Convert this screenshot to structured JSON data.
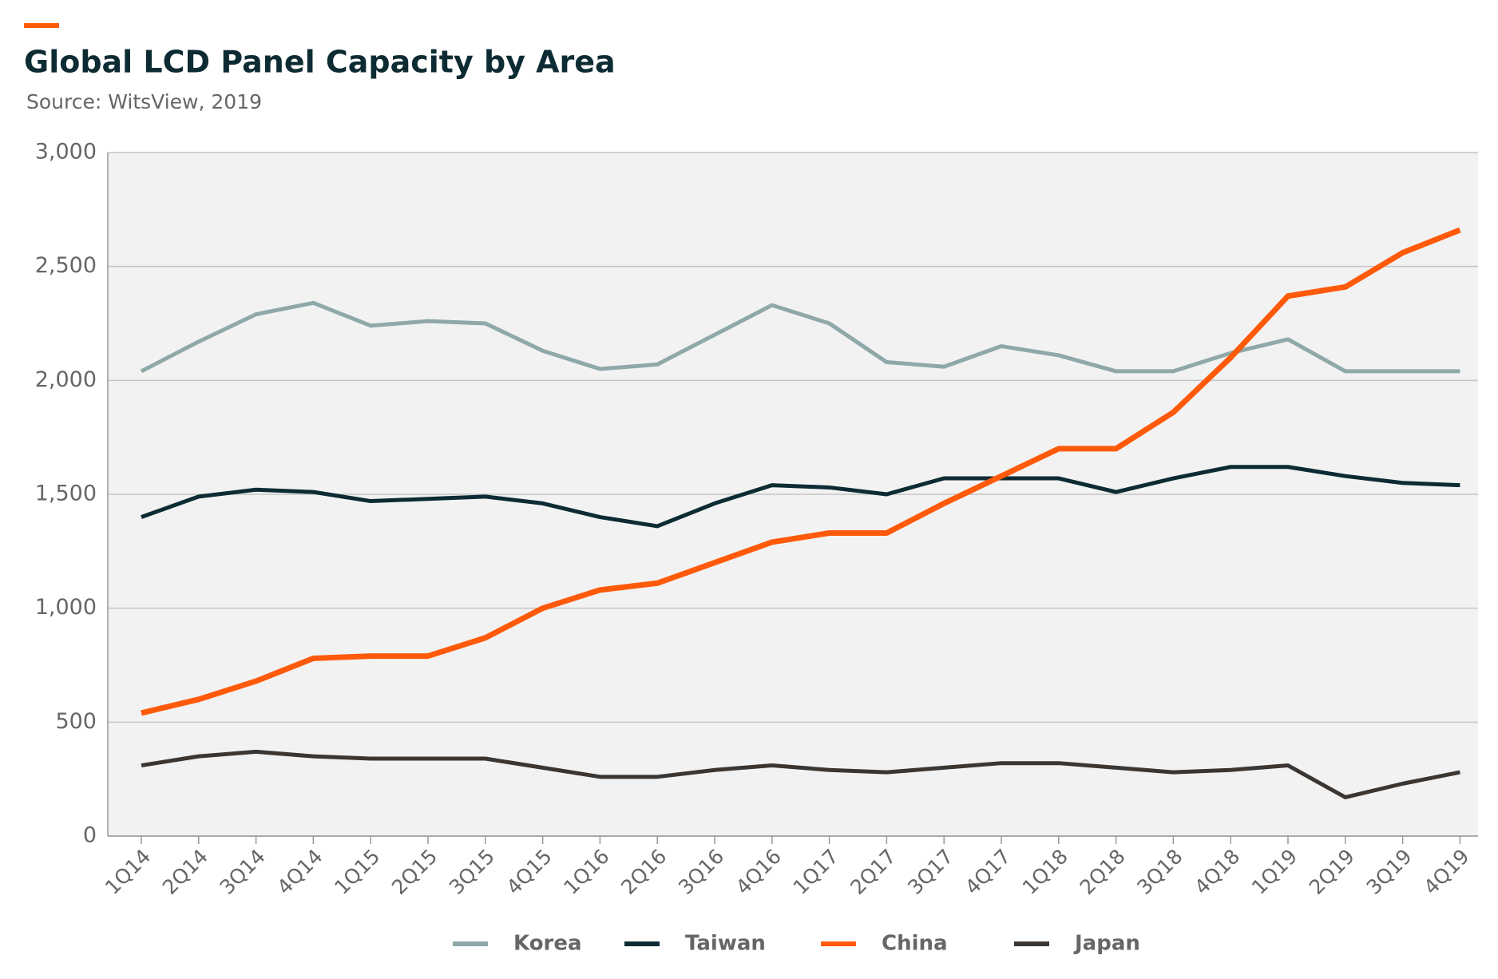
{
  "chart_data": {
    "type": "line",
    "title": "Global LCD Panel Capacity by Area",
    "subtitle": "Source: WitsView, 2019",
    "categories": [
      "1Q14",
      "2Q14",
      "3Q14",
      "4Q14",
      "1Q15",
      "2Q15",
      "3Q15",
      "4Q15",
      "1Q16",
      "2Q16",
      "3Q16",
      "4Q16",
      "1Q17",
      "2Q17",
      "3Q17",
      "4Q17",
      "1Q18",
      "2Q18",
      "3Q18",
      "4Q18",
      "1Q19",
      "2Q19",
      "3Q19",
      "4Q19"
    ],
    "series": [
      {
        "name": "Korea",
        "color": "#8fa8a8",
        "values": [
          2040,
          2170,
          2290,
          2340,
          2240,
          2260,
          2250,
          2130,
          2050,
          2070,
          2200,
          2330,
          2250,
          2080,
          2060,
          2150,
          2110,
          2040,
          2040,
          2120,
          2180,
          2040,
          2040,
          2040
        ]
      },
      {
        "name": "Taiwan",
        "color": "#0d2b33",
        "values": [
          1400,
          1490,
          1520,
          1510,
          1470,
          1480,
          1490,
          1460,
          1400,
          1360,
          1460,
          1540,
          1530,
          1500,
          1570,
          1570,
          1570,
          1510,
          1570,
          1620,
          1620,
          1580,
          1550,
          1540
        ]
      },
      {
        "name": "China",
        "color": "#ff5a0a",
        "values": [
          540,
          600,
          680,
          780,
          790,
          790,
          870,
          1000,
          1080,
          1110,
          1200,
          1290,
          1330,
          1330,
          1460,
          1580,
          1700,
          1700,
          1860,
          2100,
          2370,
          2410,
          2560,
          2660
        ]
      },
      {
        "name": "Japan",
        "color": "#3b3632",
        "values": [
          310,
          350,
          370,
          350,
          340,
          340,
          340,
          300,
          260,
          260,
          290,
          310,
          290,
          280,
          300,
          320,
          320,
          300,
          280,
          290,
          310,
          170,
          230,
          280
        ]
      }
    ],
    "ylim": [
      0,
      3000
    ],
    "yticks": [
      0,
      500,
      {
        "value": 1000,
        "label": "1,000"
      },
      {
        "value": 1500,
        "label": "1,500"
      },
      {
        "value": 2000,
        "label": "2,000"
      },
      {
        "value": 2500,
        "label": "2,500"
      },
      {
        "value": 3000,
        "label": "3,000"
      }
    ],
    "grid": true,
    "legend": "bottom"
  }
}
